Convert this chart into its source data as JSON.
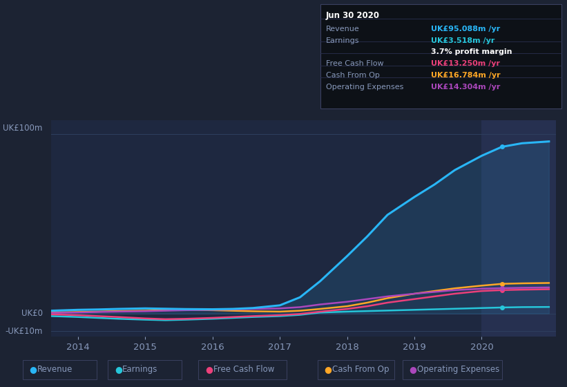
{
  "bg_color": "#1c2333",
  "plot_bg_color": "#1e2840",
  "highlight_bg_color": "#263050",
  "grid_color": "#2e3f5e",
  "text_color": "#8899bb",
  "ylabel_text": "UK£100m",
  "ylabel_zero": "UK£0",
  "ylabel_neg": "-UK£10m",
  "years": [
    2013.6,
    2014.0,
    2014.3,
    2014.6,
    2015.0,
    2015.3,
    2015.6,
    2016.0,
    2016.3,
    2016.6,
    2017.0,
    2017.3,
    2017.6,
    2018.0,
    2018.3,
    2018.6,
    2019.0,
    2019.3,
    2019.6,
    2020.0,
    2020.3,
    2020.6,
    2021.0
  ],
  "revenue": [
    1.5,
    2.0,
    2.2,
    2.5,
    2.8,
    2.6,
    2.4,
    2.3,
    2.5,
    3.0,
    4.5,
    9,
    18,
    32,
    43,
    55,
    65,
    72,
    80,
    88,
    93,
    95,
    96
  ],
  "earnings": [
    -1.5,
    -2.0,
    -2.5,
    -3.0,
    -3.5,
    -3.8,
    -3.5,
    -3.0,
    -2.5,
    -2.0,
    -1.5,
    -0.8,
    0.5,
    1.0,
    1.3,
    1.6,
    2.0,
    2.3,
    2.6,
    3.0,
    3.3,
    3.518,
    3.6
  ],
  "free_cash_flow": [
    -0.5,
    -1.0,
    -1.5,
    -2.0,
    -2.8,
    -3.2,
    -3.0,
    -2.5,
    -2.0,
    -1.5,
    -1.0,
    -0.3,
    1.0,
    2.5,
    4.0,
    6.0,
    8.0,
    9.5,
    11.0,
    12.5,
    13.0,
    13.25,
    13.5
  ],
  "cash_from_op": [
    0.5,
    0.8,
    1.0,
    1.3,
    1.5,
    1.8,
    2.0,
    1.8,
    1.5,
    1.2,
    1.0,
    1.5,
    2.5,
    4.0,
    6.0,
    8.5,
    11.0,
    12.5,
    14.0,
    15.5,
    16.5,
    16.784,
    17.0
  ],
  "operating_expenses": [
    0.3,
    0.5,
    0.8,
    1.0,
    1.2,
    1.5,
    1.8,
    2.0,
    2.2,
    2.5,
    2.8,
    3.5,
    5.0,
    6.5,
    8.0,
    9.5,
    11.0,
    12.0,
    13.0,
    13.8,
    14.1,
    14.304,
    14.5
  ],
  "revenue_color": "#29b6f6",
  "earnings_color": "#26c6da",
  "fcf_color": "#ec407a",
  "cashop_color": "#ffa726",
  "opex_color": "#ab47bc",
  "highlight_x_start": 2020.0,
  "xlim": [
    2013.6,
    2021.1
  ],
  "ylim": [
    -13,
    108
  ],
  "zero_line_y": 0,
  "hundred_line_y": 100,
  "neg10_line_y": -10,
  "xticks": [
    2014,
    2015,
    2016,
    2017,
    2018,
    2019,
    2020
  ],
  "info_box": {
    "date": "Jun 30 2020",
    "revenue_label": "Revenue",
    "revenue_value": "UK£95.088m /yr",
    "earnings_label": "Earnings",
    "earnings_value": "UK£3.518m /yr",
    "profit_margin": "3.7% profit margin",
    "fcf_label": "Free Cash Flow",
    "fcf_value": "UK£13.250m /yr",
    "cashop_label": "Cash From Op",
    "cashop_value": "UK£16.784m /yr",
    "opex_label": "Operating Expenses",
    "opex_value": "UK£14.304m /yr"
  },
  "legend_items": [
    {
      "label": "Revenue",
      "color": "#29b6f6"
    },
    {
      "label": "Earnings",
      "color": "#26c6da"
    },
    {
      "label": "Free Cash Flow",
      "color": "#ec407a"
    },
    {
      "label": "Cash From Op",
      "color": "#ffa726"
    },
    {
      "label": "Operating Expenses",
      "color": "#ab47bc"
    }
  ]
}
